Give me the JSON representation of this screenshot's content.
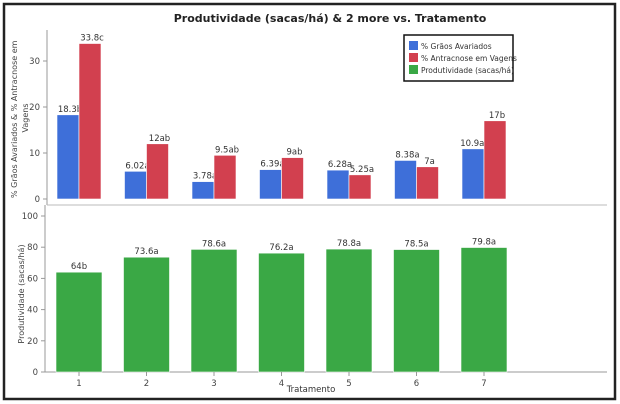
{
  "chart_data": [
    {
      "type": "bar",
      "title": "Produtividade (sacas/há) & 2 more vs. Tratamento",
      "ylabel": "% Grãos Avariados & % Antracnose em Vagens",
      "ylim": [
        0,
        36
      ],
      "yticks": [
        0,
        10,
        20,
        30
      ],
      "categories": [
        "1",
        "2",
        "3",
        "4",
        "5",
        "6",
        "7"
      ],
      "series": [
        {
          "name": "% Grãos Avariados",
          "color": "#3e6fd9",
          "values": [
            18.3,
            6.02,
            3.78,
            6.39,
            6.28,
            8.38,
            10.9
          ],
          "labels": [
            "18.3b",
            "6.02a",
            "3.78a",
            "6.39a",
            "6.28a",
            "8.38a",
            "10.9ab"
          ]
        },
        {
          "name": "% Antracnose em Vagens",
          "color": "#d2404f",
          "values": [
            33.8,
            12,
            9.5,
            9,
            5.25,
            7,
            17
          ],
          "labels": [
            "33.8c",
            "12ab",
            "9.5ab",
            "9ab",
            "5.25a",
            "7a",
            "17b"
          ]
        }
      ],
      "legend": {
        "placement": "top-right",
        "entries": [
          "% Grãos Avariados",
          "% Antracnose em Vagens",
          "Produtividade (sacas/há)"
        ],
        "colors": [
          "#3e6fd9",
          "#d2404f",
          "#3aa845"
        ]
      }
    },
    {
      "type": "bar",
      "xlabel": "Tratamento",
      "ylabel": "Produtividade (sacas/há)",
      "ylim": [
        0,
        100
      ],
      "yticks": [
        0,
        20,
        40,
        60,
        80,
        100
      ],
      "categories": [
        "1",
        "2",
        "3",
        "4",
        "5",
        "6",
        "7"
      ],
      "series": [
        {
          "name": "Produtividade (sacas/há)",
          "color": "#3aa845",
          "values": [
            64,
            73.6,
            78.6,
            76.2,
            78.8,
            78.5,
            79.8
          ],
          "labels": [
            "64b",
            "73.6a",
            "78.6a",
            "76.2a",
            "78.8a",
            "78.5a",
            "79.8a"
          ]
        }
      ]
    }
  ]
}
